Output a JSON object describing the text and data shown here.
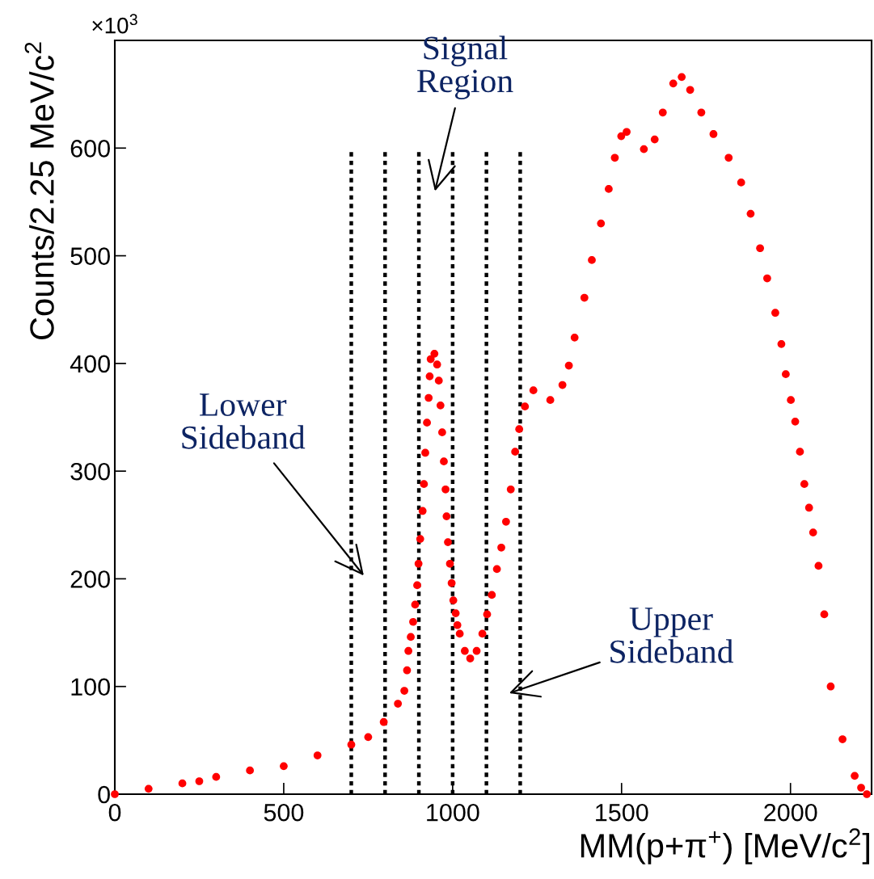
{
  "chart_data": {
    "type": "scatter",
    "xlabel": "MM(p+π$^{+}$) [MeV/c$^{2}$]",
    "ylabel": "Counts/2.25 MeV/c$^{2}$",
    "x": [
      0,
      100,
      200,
      250,
      300,
      400,
      500,
      600,
      700,
      750,
      796,
      838,
      857,
      865,
      869,
      876,
      883,
      889,
      895,
      899,
      904,
      911,
      915,
      919,
      924,
      929,
      932,
      935,
      946,
      954,
      959,
      964,
      969,
      974,
      979,
      982,
      986,
      992,
      997,
      1002,
      1009,
      1014,
      1021,
      1036,
      1052,
      1071,
      1088,
      1102,
      1116,
      1131,
      1144,
      1158,
      1172,
      1185,
      1197,
      1214,
      1239,
      1289,
      1325,
      1344,
      1361,
      1390,
      1412,
      1439,
      1462,
      1480,
      1499,
      1515,
      1566,
      1598,
      1622,
      1653,
      1678,
      1703,
      1736,
      1772,
      1817,
      1854,
      1882,
      1910,
      1931,
      1955,
      1973,
      1986,
      2001,
      2014,
      2028,
      2041,
      2055,
      2067,
      2083,
      2100,
      2119,
      2154,
      2190,
      2209,
      2226
    ],
    "series": [
      {
        "color": "#ff0000",
        "values": [
          0,
          5,
          10,
          12,
          16,
          22,
          26,
          36,
          46,
          53,
          67,
          84,
          96,
          115,
          133,
          146,
          160,
          176,
          194,
          214,
          237,
          263,
          288,
          317,
          345,
          368,
          388,
          404,
          409,
          399,
          384,
          361,
          336,
          309,
          283,
          258,
          234,
          214,
          196,
          180,
          168,
          157,
          149,
          133,
          126,
          133,
          149,
          167,
          185,
          209,
          229,
          253,
          283,
          318,
          339,
          360,
          375,
          366,
          380,
          398,
          424,
          461,
          496,
          530,
          562,
          591,
          611,
          615,
          599,
          608,
          633,
          660,
          666,
          654,
          633,
          613,
          591,
          568,
          539,
          507,
          479,
          447,
          418,
          390,
          366,
          346,
          318,
          288,
          266,
          243,
          212,
          167,
          100,
          51,
          17,
          6,
          0
        ]
      }
    ],
    "marker": "circle",
    "xlim": [
      0,
      2240
    ],
    "xticks": [
      0,
      500,
      1000,
      1500,
      2000
    ],
    "ylim": [
      0,
      700
    ],
    "yticks": [
      0,
      100,
      200,
      300,
      400,
      500,
      600
    ],
    "grid": false,
    "legend": false,
    "ref_lines": [
      {
        "axis": "x",
        "value": 700,
        "color": "#000000",
        "line_style": "dotted"
      },
      {
        "axis": "x",
        "value": 800,
        "color": "#000000",
        "line_style": "dotted"
      },
      {
        "axis": "x",
        "value": 900,
        "color": "#000000",
        "line_style": "dotted"
      },
      {
        "axis": "x",
        "value": 1000,
        "color": "#000000",
        "line_style": "dotted"
      },
      {
        "axis": "x",
        "value": 1100,
        "color": "#000000",
        "line_style": "dotted"
      },
      {
        "axis": "x",
        "value": 1200,
        "color": "#000000",
        "line_style": "dotted"
      }
    ],
    "annotations": [
      "×10$^{3}$",
      "Signal\nRegion",
      "Lower\nSideband",
      "Upper\nSideband"
    ]
  }
}
